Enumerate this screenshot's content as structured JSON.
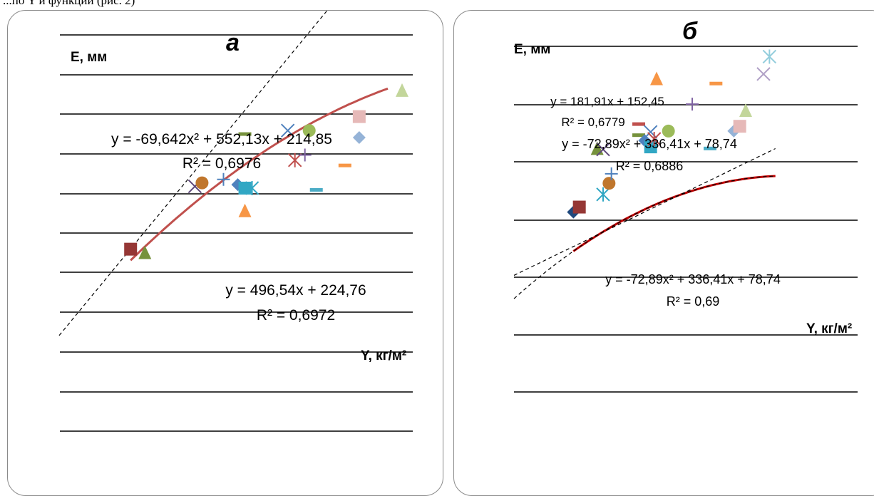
{
  "caption": "...по Y и функции (рис. 2)",
  "chart_data": [
    {
      "type": "scatter",
      "panel_letter": "а",
      "ylabel": "E, мм",
      "xlabel": "Y, кг/м²",
      "grid": true,
      "xlim": [
        0.6,
        3.0
      ],
      "ylim": [
        420,
        1380
      ],
      "annotations": [
        {
          "equation": "y = -69,642x² + 552,13x + 214,85",
          "r2": "R² = 0,6976"
        },
        {
          "equation": "y = 496,54x + 224,76",
          "r2": "R² = 0,6972"
        }
      ],
      "trendlines": [
        {
          "kind": "poly",
          "coef": [
            -69.642,
            552.13,
            214.85
          ],
          "range": [
            1.1,
            2.9
          ],
          "color": "#c0504d",
          "style": "solid"
        },
        {
          "kind": "linear",
          "coef": [
            0,
            496.54,
            224.76
          ],
          "range": [
            0.6,
            2.9
          ],
          "color": "#000000",
          "style": "dashed"
        }
      ],
      "points": [
        {
          "x": 1.1,
          "y": 770,
          "shape": "square",
          "color": "#953735"
        },
        {
          "x": 1.2,
          "y": 760,
          "shape": "triangle",
          "color": "#76923c"
        },
        {
          "x": 1.55,
          "y": 950,
          "shape": "x",
          "color": "#604a7b"
        },
        {
          "x": 1.6,
          "y": 960,
          "shape": "circle",
          "color": "#c0762c"
        },
        {
          "x": 1.75,
          "y": 970,
          "shape": "plus",
          "color": "#4f81bd"
        },
        {
          "x": 1.85,
          "y": 955,
          "shape": "diamond",
          "color": "#4f81bd"
        },
        {
          "x": 1.9,
          "y": 945,
          "shape": "square",
          "color": "#31a7c4"
        },
        {
          "x": 1.95,
          "y": 945,
          "shape": "star",
          "color": "#31a7c4"
        },
        {
          "x": 1.9,
          "y": 880,
          "shape": "triangle",
          "color": "#f79646"
        },
        {
          "x": 1.9,
          "y": 1100,
          "shape": "dash",
          "color": "#76923c"
        },
        {
          "x": 2.2,
          "y": 1110,
          "shape": "x",
          "color": "#4f81bd"
        },
        {
          "x": 2.35,
          "y": 1110,
          "shape": "circle",
          "color": "#9bbb59"
        },
        {
          "x": 2.25,
          "y": 1025,
          "shape": "star",
          "color": "#c0504d"
        },
        {
          "x": 2.32,
          "y": 1040,
          "shape": "plus",
          "color": "#8064a2"
        },
        {
          "x": 2.4,
          "y": 940,
          "shape": "dash",
          "color": "#4bacc6"
        },
        {
          "x": 2.6,
          "y": 1010,
          "shape": "dash",
          "color": "#f79646"
        },
        {
          "x": 2.7,
          "y": 1150,
          "shape": "square",
          "color": "#e6b9b8"
        },
        {
          "x": 2.7,
          "y": 1090,
          "shape": "diamond",
          "color": "#95b3d7"
        },
        {
          "x": 3.0,
          "y": 1225,
          "shape": "triangle",
          "color": "#c3d69b"
        }
      ]
    },
    {
      "type": "scatter",
      "panel_letter": "б",
      "ylabel": "E, мм",
      "xlabel": "Y, кг/м²",
      "grid": true,
      "xlim": [
        0.0,
        2.4
      ],
      "ylim": [
        -20,
        880
      ],
      "annotations": [
        {
          "equation": "y = 181,91x + 152,45",
          "r2": "R² = 0,6779"
        },
        {
          "equation": "y = -72,89x² + 336,41x + 78,74",
          "r2": "R² = 0,6886"
        },
        {
          "equation": "y = -72,89x² + 336,41x + 78,74",
          "r2": "R² = 0,69"
        }
      ],
      "trendlines": [
        {
          "kind": "poly",
          "coef": [
            -72.89,
            336.41,
            78.74
          ],
          "range": [
            0.5,
            2.2
          ],
          "color": "#c00000",
          "style": "solid"
        },
        {
          "kind": "linear",
          "coef": [
            0,
            181.91,
            152.45
          ],
          "range": [
            0.0,
            2.2
          ],
          "color": "#000000",
          "style": "dashed"
        },
        {
          "kind": "poly",
          "coef": [
            -72.89,
            336.41,
            78.74
          ],
          "range": [
            0.0,
            2.2
          ],
          "color": "#000000",
          "style": "dashed"
        }
      ],
      "points": [
        {
          "x": 0.5,
          "y": 352,
          "shape": "diamond",
          "color": "#1f497d"
        },
        {
          "x": 0.55,
          "y": 368,
          "shape": "square",
          "color": "#953735"
        },
        {
          "x": 0.7,
          "y": 553,
          "shape": "triangle",
          "color": "#76923c"
        },
        {
          "x": 0.75,
          "y": 550,
          "shape": "x",
          "color": "#604a7b"
        },
        {
          "x": 0.75,
          "y": 408,
          "shape": "star",
          "color": "#31a7c4"
        },
        {
          "x": 0.8,
          "y": 443,
          "shape": "circle",
          "color": "#c0762c"
        },
        {
          "x": 0.82,
          "y": 473,
          "shape": "plus",
          "color": "#4f81bd"
        },
        {
          "x": 1.05,
          "y": 630,
          "shape": "dash",
          "color": "#c0504d"
        },
        {
          "x": 1.05,
          "y": 595,
          "shape": "dash",
          "color": "#76923c"
        },
        {
          "x": 1.1,
          "y": 578,
          "shape": "diamond",
          "color": "#4f81bd"
        },
        {
          "x": 1.15,
          "y": 558,
          "shape": "square",
          "color": "#31a7c4"
        },
        {
          "x": 1.15,
          "y": 605,
          "shape": "x",
          "color": "#4f81bd"
        },
        {
          "x": 1.18,
          "y": 583,
          "shape": "star",
          "color": "#c0504d"
        },
        {
          "x": 1.2,
          "y": 773,
          "shape": "triangle",
          "color": "#f79646"
        },
        {
          "x": 1.3,
          "y": 608,
          "shape": "circle",
          "color": "#9bbb59"
        },
        {
          "x": 1.5,
          "y": 693,
          "shape": "plus",
          "color": "#8064a2"
        },
        {
          "x": 1.65,
          "y": 553,
          "shape": "dash",
          "color": "#4bacc6"
        },
        {
          "x": 1.7,
          "y": 758,
          "shape": "dash",
          "color": "#f79646"
        },
        {
          "x": 1.85,
          "y": 608,
          "shape": "diamond",
          "color": "#95b3d7"
        },
        {
          "x": 1.9,
          "y": 623,
          "shape": "square",
          "color": "#e6b9b8"
        },
        {
          "x": 1.95,
          "y": 673,
          "shape": "triangle",
          "color": "#c3d69b"
        },
        {
          "x": 2.1,
          "y": 788,
          "shape": "x",
          "color": "#b2a2c7"
        },
        {
          "x": 2.15,
          "y": 843,
          "shape": "star",
          "color": "#92cddc"
        }
      ]
    }
  ]
}
